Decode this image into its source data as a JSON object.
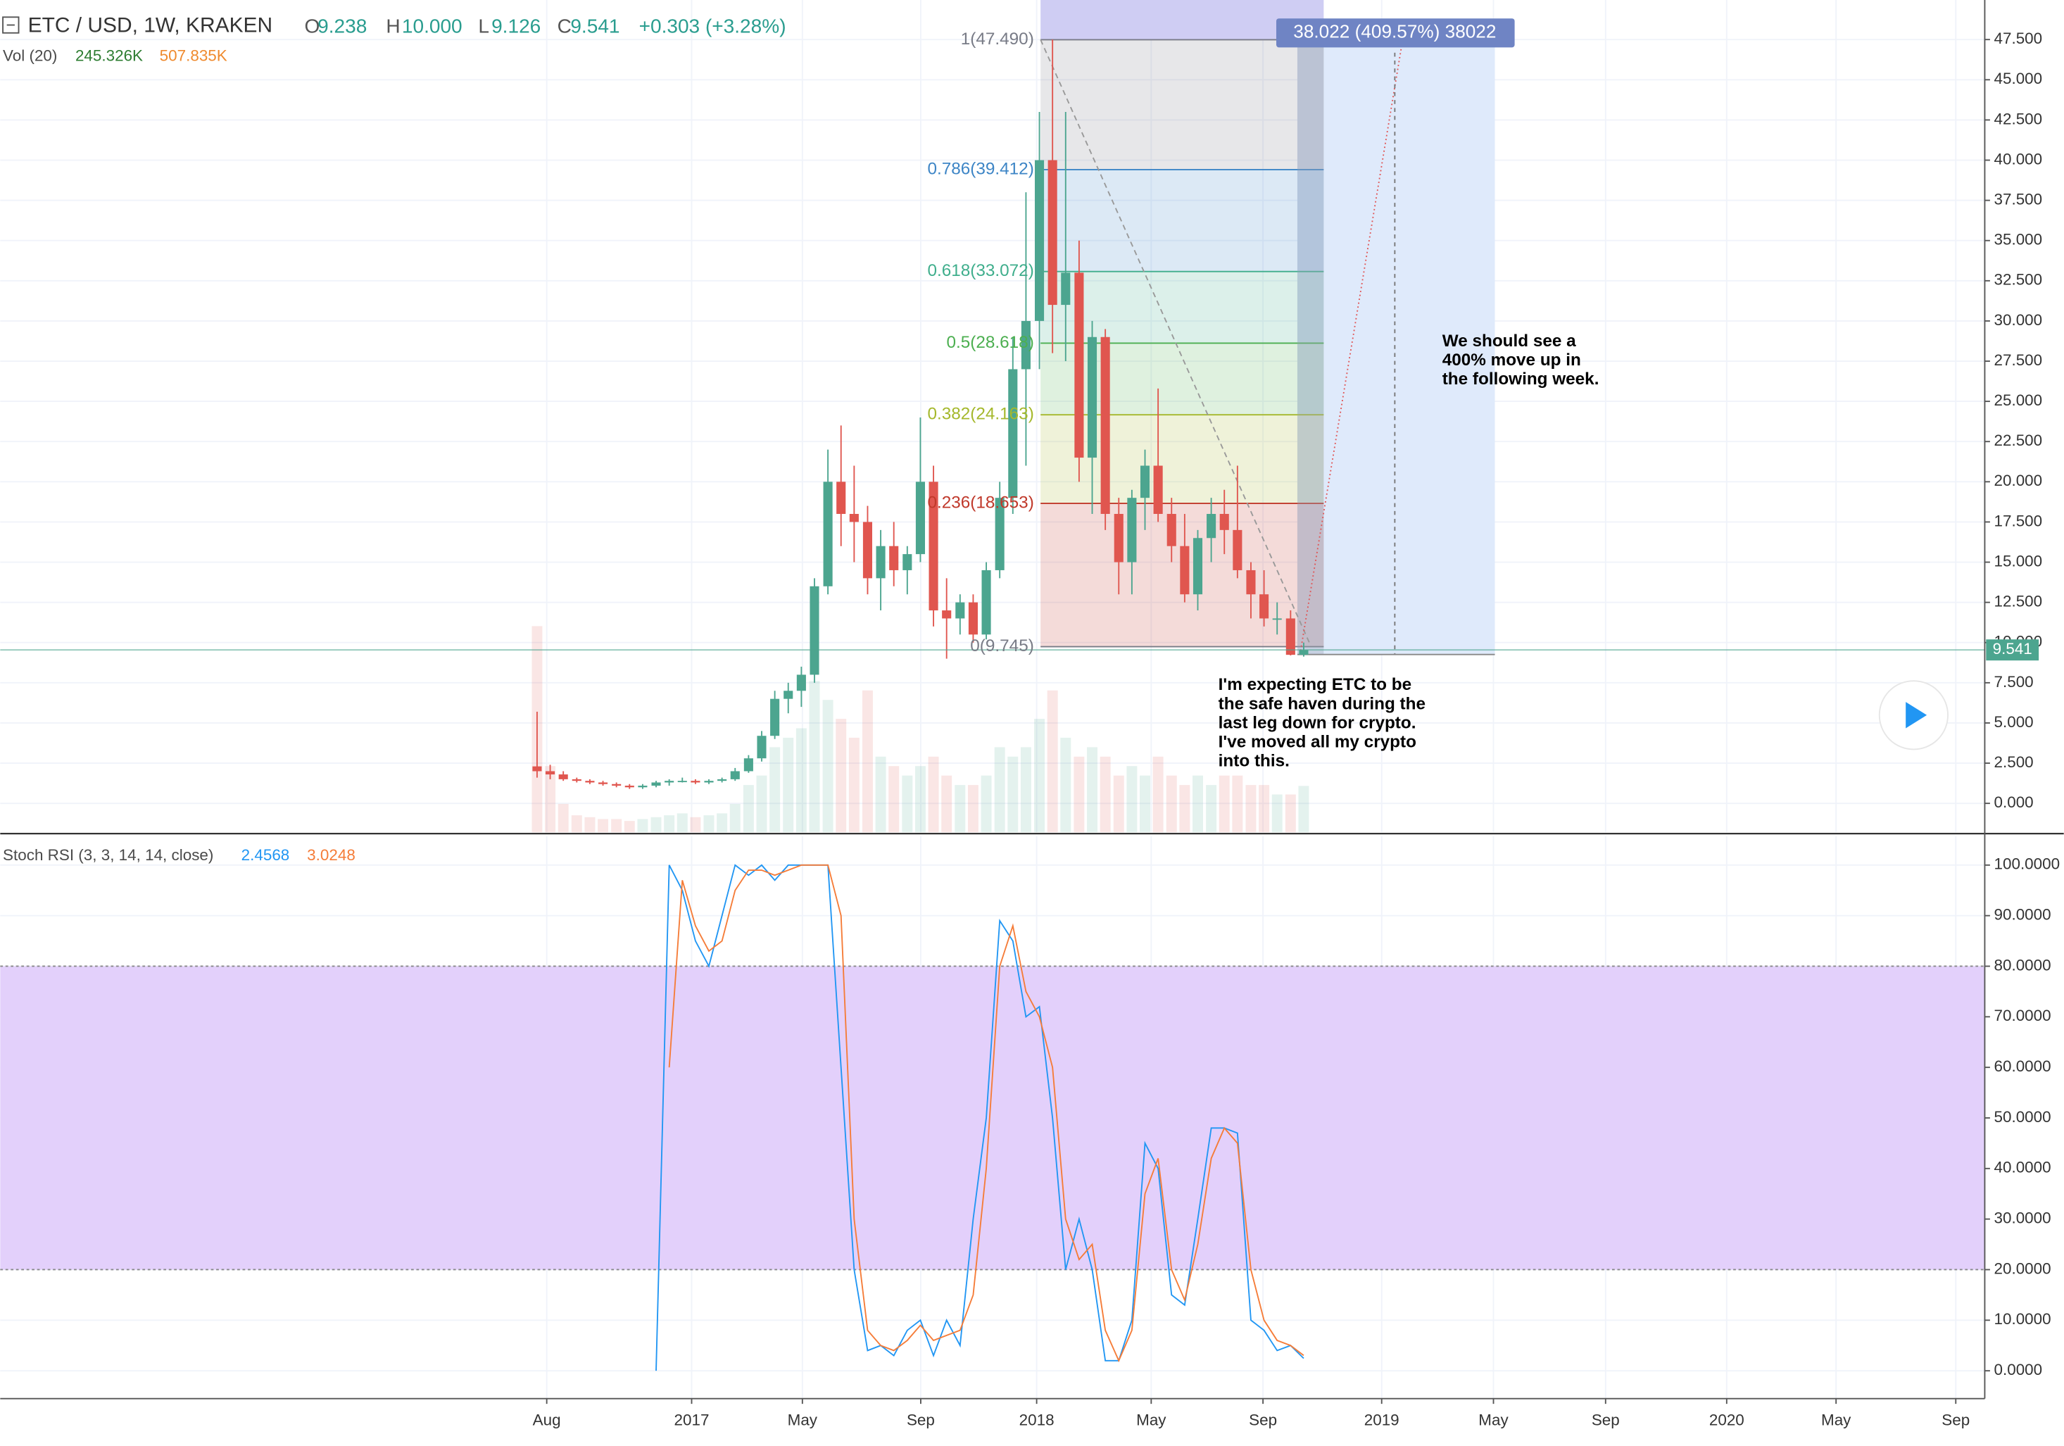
{
  "header": {
    "symbol": "ETC / USD, 1W, KRAKEN",
    "ohlc": [
      {
        "label": "O",
        "value": "9.238"
      },
      {
        "label": "H",
        "value": "10.000"
      },
      {
        "label": "L",
        "value": "9.126"
      },
      {
        "label": "C",
        "value": "9.541"
      }
    ],
    "change": "+0.303 (+3.28%)",
    "volume_title": "Vol (20)",
    "volume_values": [
      "245.326K",
      "507.835K"
    ]
  },
  "chart_data": [
    {
      "type": "candlestick",
      "x": [
        2016.552,
        2016.59,
        2016.628,
        2016.667,
        2016.705,
        2016.743,
        2016.782,
        2016.82,
        2016.858,
        2016.897,
        2016.935,
        2016.973,
        2017.011,
        2017.05,
        2017.088,
        2017.126,
        2017.165,
        2017.203,
        2017.241,
        2017.28,
        2017.318,
        2017.356,
        2017.395,
        2017.433,
        2017.471,
        2017.51,
        2017.548,
        2017.586,
        2017.625,
        2017.663,
        2017.701,
        2017.739,
        2017.778,
        2017.816,
        2017.854,
        2017.893,
        2017.931,
        2017.969,
        2018.008,
        2018.046,
        2018.084,
        2018.123,
        2018.161,
        2018.199,
        2018.238,
        2018.276,
        2018.314,
        2018.352,
        2018.391,
        2018.429,
        2018.467,
        2018.506,
        2018.544,
        2018.582,
        2018.621,
        2018.659,
        2018.697,
        2018.736,
        2018.774
      ],
      "open": [
        2.3,
        2,
        1.8,
        1.5,
        1.4,
        1.3,
        1.2,
        1.1,
        1,
        1.1,
        1.3,
        1.4,
        1.4,
        1.3,
        1.4,
        1.5,
        2,
        2.8,
        4.2,
        6.5,
        7,
        8,
        13.5,
        20,
        18,
        17.5,
        14,
        16,
        14.5,
        15.5,
        20,
        12,
        11.5,
        12.5,
        10.5,
        14.5,
        19,
        27,
        30,
        40,
        31,
        33,
        21.5,
        29,
        18,
        15,
        19,
        21,
        18,
        16,
        13,
        16.5,
        18,
        17,
        14.5,
        13,
        11.5,
        11.5,
        9.238
      ],
      "high": [
        5.7,
        2.4,
        2,
        1.6,
        1.5,
        1.4,
        1.3,
        1.2,
        1.2,
        1.4,
        1.5,
        1.6,
        1.5,
        1.5,
        1.6,
        2.2,
        3,
        4.5,
        7,
        7.5,
        8.5,
        14,
        22,
        23.5,
        21,
        18.5,
        17,
        17.5,
        16,
        24,
        21,
        14,
        13,
        13,
        15,
        20,
        29,
        38,
        43,
        47.5,
        43,
        35,
        30,
        29.5,
        19,
        19.5,
        22,
        25.8,
        19,
        18,
        17,
        19,
        19.5,
        21,
        15,
        14.5,
        12.5,
        12,
        10
      ],
      "low": [
        1.6,
        1.5,
        1.4,
        1.3,
        1.2,
        1.1,
        1,
        0.9,
        0.9,
        1,
        1.1,
        1.3,
        1.2,
        1.2,
        1.3,
        1.4,
        1.9,
        2.6,
        4,
        5.6,
        6,
        7.5,
        13,
        16,
        15,
        13,
        12,
        13.5,
        13,
        15,
        11,
        9,
        10.5,
        10,
        10.2,
        14,
        18,
        21,
        27,
        28,
        27.5,
        20,
        18,
        17,
        13,
        13,
        17,
        17.5,
        15,
        12.5,
        12,
        15,
        15.5,
        14,
        11.5,
        11,
        10.5,
        9.2,
        9.126
      ],
      "close": [
        2,
        1.8,
        1.5,
        1.4,
        1.3,
        1.2,
        1.1,
        1,
        1.1,
        1.3,
        1.4,
        1.4,
        1.3,
        1.4,
        1.5,
        2,
        2.8,
        4.2,
        6.5,
        7,
        8,
        13.5,
        20,
        18,
        17.5,
        14,
        16,
        14.5,
        15.5,
        20,
        12,
        11.5,
        12.5,
        10.5,
        14.5,
        19,
        27,
        30,
        40,
        31,
        33,
        21.5,
        29,
        18,
        15,
        19,
        21,
        18,
        16,
        13,
        16.5,
        18,
        17,
        14.5,
        13,
        11.5,
        11.5,
        9.238,
        9.541
      ],
      "volume": [
        1090000,
        350000,
        150000,
        90000,
        80000,
        70000,
        70000,
        60000,
        70000,
        80000,
        90000,
        100000,
        80000,
        90000,
        100000,
        150000,
        250000,
        300000,
        450000,
        500000,
        550000,
        800000,
        700000,
        600000,
        500000,
        750000,
        400000,
        350000,
        300000,
        350000,
        400000,
        300000,
        250000,
        250000,
        300000,
        450000,
        400000,
        450000,
        600000,
        750000,
        500000,
        400000,
        450000,
        400000,
        300000,
        350000,
        300000,
        400000,
        300000,
        250000,
        300000,
        250000,
        300000,
        300000,
        250000,
        250000,
        200000,
        200000,
        245326
      ],
      "up_color": "#4ca58f",
      "down_color": "#e0564f",
      "xlim": [
        2014.996,
        2020.748
      ],
      "xticks": [
        {
          "value": 2016.58,
          "label": "Aug"
        },
        2017,
        {
          "value": 2017.321,
          "label": "May"
        },
        {
          "value": 2017.664,
          "label": "Sep"
        },
        2018,
        {
          "value": 2018.332,
          "label": "May"
        },
        {
          "value": 2018.656,
          "label": "Sep"
        },
        2019,
        {
          "value": 2019.324,
          "label": "May"
        },
        {
          "value": 2019.649,
          "label": "Sep"
        },
        2020,
        {
          "value": 2020.317,
          "label": "May"
        },
        {
          "value": 2020.664,
          "label": "Sep"
        }
      ],
      "ylim": [
        -1.8,
        49.96
      ],
      "yticks": [
        {
          "value": 0,
          "label": "0.000"
        },
        {
          "value": 2.5,
          "label": "2.500"
        },
        {
          "value": 5,
          "label": "5.000"
        },
        {
          "value": 7.5,
          "label": "7.500"
        },
        {
          "value": 10,
          "label": "10.000"
        },
        {
          "value": 12.5,
          "label": "12.500"
        },
        {
          "value": 15,
          "label": "15.000"
        },
        {
          "value": 17.5,
          "label": "17.500"
        },
        {
          "value": 20,
          "label": "20.000"
        },
        {
          "value": 22.5,
          "label": "22.500"
        },
        {
          "value": 25,
          "label": "25.000"
        },
        {
          "value": 27.5,
          "label": "27.500"
        },
        {
          "value": 30,
          "label": "30.000"
        },
        {
          "value": 32.5,
          "label": "32.500"
        },
        {
          "value": 35,
          "label": "35.000"
        },
        {
          "value": 37.5,
          "label": "37.500"
        },
        {
          "value": 40,
          "label": "40.000"
        },
        {
          "value": 42.5,
          "label": "42.500"
        },
        {
          "value": 45,
          "label": "45.000"
        },
        {
          "value": 47.5,
          "label": "47.500"
        }
      ],
      "volume_ylim": [
        0,
        4400000
      ],
      "grid": true,
      "fib_levels": [
        {
          "label": "1(47.490)",
          "value": 47.49,
          "color": "#787b86"
        },
        {
          "label": "0.786(39.412)",
          "value": 39.412,
          "color": "#3d85c6"
        },
        {
          "label": "0.618(33.072)",
          "value": 33.072,
          "color": "#3fae8c"
        },
        {
          "label": "0.5(28.618)",
          "value": 28.618,
          "color": "#4caf50"
        },
        {
          "label": "0.382(24.163)",
          "value": 24.163,
          "color": "#a5b82c"
        },
        {
          "label": "0.236(18.653)",
          "value": 18.653,
          "color": "#c0392b"
        },
        {
          "label": "0(9.745)",
          "value": 9.745,
          "color": "#787b86"
        }
      ],
      "projection_label": "38.022 (409.57%) 38022",
      "annotations": [
        {
          "lines": [
            "We should see a",
            "400% move up in",
            "the following week."
          ]
        },
        {
          "lines": [
            "I'm expecting ETC to be",
            "the safe haven during the",
            "last leg down for crypto.",
            "I've moved all my crypto",
            "into this."
          ]
        }
      ]
    },
    {
      "type": "line",
      "title": "Stoch RSI (3, 3, 14, 14, close)",
      "series": [
        {
          "color": "#2196f3",
          "values": [
            null,
            null,
            null,
            null,
            null,
            null,
            null,
            null,
            null,
            0,
            100,
            95,
            85,
            80,
            90,
            100,
            98,
            100,
            97,
            100,
            100,
            100,
            100,
            60,
            20,
            4,
            5,
            3,
            8,
            10,
            3,
            10,
            5,
            30,
            50,
            89,
            85,
            70,
            72,
            50,
            20,
            30,
            20,
            2,
            2,
            10,
            45,
            40,
            15,
            13,
            30,
            48,
            48,
            47,
            10,
            8,
            4,
            5,
            2.4568
          ]
        },
        {
          "color": "#f57c38",
          "values": [
            null,
            null,
            null,
            null,
            null,
            null,
            null,
            null,
            null,
            null,
            60,
            97,
            88,
            83,
            85,
            95,
            99,
            99,
            98,
            99,
            100,
            100,
            100,
            90,
            30,
            8,
            5,
            4,
            6,
            9,
            6,
            7,
            8,
            15,
            40,
            80,
            88,
            75,
            70,
            60,
            30,
            22,
            25,
            8,
            2,
            8,
            35,
            42,
            20,
            14,
            25,
            42,
            48,
            45,
            20,
            10,
            6,
            5,
            3.0248
          ]
        }
      ],
      "ylim": [
        -5.5,
        105.7
      ],
      "yticks": [
        {
          "value": 0,
          "label": "0.0000"
        },
        {
          "value": 10,
          "label": "10.0000"
        },
        {
          "value": 20,
          "label": "20.0000"
        },
        {
          "value": 30,
          "label": "30.0000"
        },
        {
          "value": 40,
          "label": "40.0000"
        },
        {
          "value": 50,
          "label": "50.0000"
        },
        {
          "value": 60,
          "label": "60.0000"
        },
        {
          "value": 70,
          "label": "70.0000"
        },
        {
          "value": 80,
          "label": "80.0000"
        },
        {
          "value": 90,
          "label": "90.0000"
        },
        {
          "value": 100,
          "label": "100.0000"
        }
      ],
      "band": [
        20,
        80
      ],
      "band_color": "#e3d0fb"
    }
  ]
}
